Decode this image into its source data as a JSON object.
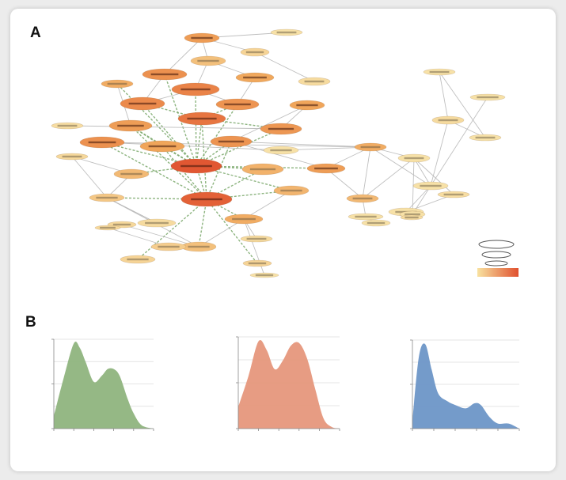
{
  "figure": {
    "panel_a_label": "A",
    "panel_b_label": "B"
  },
  "colors": {
    "node_low": "#f8e8b0",
    "node_mid": "#f0a55a",
    "node_high": "#e0502e",
    "edge_gray": "#b9b9b9",
    "edge_green": "#7aa86a",
    "density_green": "#8fb47e",
    "density_salmon": "#e6977c",
    "density_blue": "#6d96c7"
  },
  "network": {
    "nodes": [
      {
        "id": "n1",
        "level": 0.55
      },
      {
        "id": "n2",
        "level": 0.05
      },
      {
        "id": "n3",
        "level": 0.15
      },
      {
        "id": "n4",
        "level": 0.3
      },
      {
        "id": "n5",
        "level": 0.62
      },
      {
        "id": "n6",
        "level": 0.48
      },
      {
        "id": "n7",
        "level": 0.1
      },
      {
        "id": "n8",
        "level": 0.7
      },
      {
        "id": "n9",
        "level": 0.66
      },
      {
        "id": "n10",
        "level": 0.6
      },
      {
        "id": "n11",
        "level": 0.45
      },
      {
        "id": "n12",
        "level": 0.5
      },
      {
        "id": "n13",
        "level": 0.08
      },
      {
        "id": "n14",
        "level": 0.55
      },
      {
        "id": "n15",
        "level": 0.78
      },
      {
        "id": "n16",
        "level": 0.58
      },
      {
        "id": "n17",
        "level": 0.62
      },
      {
        "id": "n18",
        "level": 0.5
      },
      {
        "id": "n19",
        "level": 0.12
      },
      {
        "id": "n20",
        "level": 0.6
      },
      {
        "id": "n21",
        "level": 0.35
      },
      {
        "id": "n22",
        "level": 0.05
      },
      {
        "id": "n23",
        "level": 0.4
      },
      {
        "id": "n24",
        "level": 0.96
      },
      {
        "id": "n25",
        "level": 0.55
      },
      {
        "id": "n26",
        "level": 0.45
      },
      {
        "id": "n27",
        "level": 0.35
      },
      {
        "id": "n28",
        "level": 0.25
      },
      {
        "id": "n29",
        "level": 0.9
      },
      {
        "id": "n30",
        "level": 0.38
      },
      {
        "id": "n31",
        "level": 0.45
      },
      {
        "id": "n32",
        "level": 0.1
      },
      {
        "id": "n33",
        "level": 0.3
      },
      {
        "id": "n34",
        "level": 0.15
      },
      {
        "id": "n35",
        "level": 0.15
      },
      {
        "id": "n36",
        "level": 0.05
      },
      {
        "id": "n37",
        "level": 0.05
      },
      {
        "id": "n38",
        "level": 0.05
      },
      {
        "id": "n39",
        "level": 0.1
      },
      {
        "id": "n40",
        "level": 0.05
      },
      {
        "id": "n41",
        "level": 0.08
      },
      {
        "id": "n42",
        "level": 0.05
      },
      {
        "id": "n43",
        "level": 0.05
      },
      {
        "id": "n44",
        "level": 0.08
      },
      {
        "id": "n45",
        "level": 0.05
      },
      {
        "id": "n46",
        "level": 0.05
      },
      {
        "id": "n47",
        "level": 0.1
      },
      {
        "id": "n48",
        "level": 0.2
      },
      {
        "id": "n49",
        "level": 0.12
      },
      {
        "id": "n50",
        "level": 0.12
      },
      {
        "id": "n51",
        "level": 0.05
      },
      {
        "id": "n52",
        "level": 0.05
      }
    ],
    "edges": [
      [
        "n24",
        "n5",
        "green"
      ],
      [
        "n24",
        "n8",
        "green"
      ],
      [
        "n24",
        "n9",
        "green"
      ],
      [
        "n24",
        "n10",
        "green"
      ],
      [
        "n24",
        "n14",
        "green"
      ],
      [
        "n24",
        "n15",
        "green"
      ],
      [
        "n24",
        "n16",
        "green"
      ],
      [
        "n24",
        "n17",
        "green"
      ],
      [
        "n24",
        "n18",
        "green"
      ],
      [
        "n24",
        "n20",
        "green"
      ],
      [
        "n24",
        "n11",
        "green"
      ],
      [
        "n24",
        "n23",
        "green"
      ],
      [
        "n24",
        "n25",
        "green"
      ],
      [
        "n24",
        "n21",
        "green"
      ],
      [
        "n24",
        "n29",
        "green"
      ],
      [
        "n24",
        "n30",
        "green"
      ],
      [
        "n29",
        "n15",
        "green"
      ],
      [
        "n29",
        "n17",
        "green"
      ],
      [
        "n29",
        "n20",
        "green"
      ],
      [
        "n29",
        "n14",
        "green"
      ],
      [
        "n29",
        "n18",
        "green"
      ],
      [
        "n29",
        "n23",
        "green"
      ],
      [
        "n29",
        "n31",
        "green"
      ],
      [
        "n29",
        "n28",
        "green"
      ],
      [
        "n29",
        "n33",
        "green"
      ],
      [
        "n29",
        "n34",
        "green"
      ],
      [
        "n29",
        "n35",
        "green"
      ],
      [
        "n29",
        "n30",
        "green"
      ],
      [
        "n15",
        "n9",
        "green"
      ],
      [
        "n15",
        "n10",
        "green"
      ],
      [
        "n15",
        "n16",
        "green"
      ],
      [
        "n14",
        "n18",
        "green"
      ],
      [
        "n1",
        "n2",
        "gray"
      ],
      [
        "n1",
        "n3",
        "gray"
      ],
      [
        "n1",
        "n4",
        "gray"
      ],
      [
        "n1",
        "n5",
        "gray"
      ],
      [
        "n3",
        "n7",
        "gray"
      ],
      [
        "n4",
        "n8",
        "gray"
      ],
      [
        "n4",
        "n6",
        "gray"
      ],
      [
        "n6",
        "n10",
        "gray"
      ],
      [
        "n8",
        "n9",
        "gray"
      ],
      [
        "n8",
        "n10",
        "gray"
      ],
      [
        "n12",
        "n20",
        "gray"
      ],
      [
        "n11",
        "n14",
        "gray"
      ],
      [
        "n12",
        "n16",
        "gray"
      ],
      [
        "n13",
        "n16",
        "gray"
      ],
      [
        "n17",
        "n22",
        "gray"
      ],
      [
        "n17",
        "n26",
        "gray"
      ],
      [
        "n20",
        "n25",
        "gray"
      ],
      [
        "n20",
        "n26",
        "gray"
      ],
      [
        "n25",
        "n27",
        "gray"
      ],
      [
        "n25",
        "n26",
        "gray"
      ],
      [
        "n26",
        "n36",
        "gray"
      ],
      [
        "n26",
        "n27",
        "gray"
      ],
      [
        "n27",
        "n36",
        "gray"
      ],
      [
        "n27",
        "n37",
        "gray"
      ],
      [
        "n26",
        "n38",
        "gray"
      ],
      [
        "n36",
        "n38",
        "gray"
      ],
      [
        "n36",
        "n43",
        "gray"
      ],
      [
        "n38",
        "n42",
        "gray"
      ],
      [
        "n36",
        "n41",
        "gray"
      ],
      [
        "n41",
        "n42",
        "gray"
      ],
      [
        "n42",
        "n43",
        "gray"
      ],
      [
        "n43",
        "n44",
        "gray"
      ],
      [
        "n42",
        "n44",
        "gray"
      ],
      [
        "n43",
        "n45",
        "gray"
      ],
      [
        "n38",
        "n39",
        "gray"
      ],
      [
        "n40",
        "n39",
        "gray"
      ],
      [
        "n40",
        "n46",
        "gray"
      ],
      [
        "n39",
        "n46",
        "gray"
      ],
      [
        "n37",
        "n52",
        "gray"
      ],
      [
        "n21",
        "n19",
        "gray"
      ],
      [
        "n21",
        "n28",
        "gray"
      ],
      [
        "n28",
        "n32",
        "gray"
      ],
      [
        "n31",
        "n33",
        "gray"
      ],
      [
        "n31",
        "n47",
        "gray"
      ],
      [
        "n33",
        "n48",
        "gray"
      ],
      [
        "n33",
        "n49",
        "gray"
      ],
      [
        "n48",
        "n50",
        "gray"
      ],
      [
        "n31",
        "n51",
        "gray"
      ],
      [
        "n33",
        "n28",
        "gray"
      ],
      [
        "n30",
        "n31",
        "gray"
      ],
      [
        "n19",
        "n28",
        "gray"
      ],
      [
        "n32",
        "n28",
        "gray"
      ],
      [
        "n22",
        "n26",
        "gray"
      ],
      [
        "n5",
        "n9",
        "gray"
      ]
    ]
  },
  "legend": {
    "gradient_low": "#f8e2a0",
    "gradient_high": "#e0502e"
  },
  "chart_data": [
    {
      "type": "area",
      "title": "",
      "xlabel": "",
      "ylabel": "",
      "x": [
        0,
        0.5,
        1.0,
        1.3,
        1.6,
        2.0,
        2.4,
        2.7,
        3.0,
        3.3,
        3.7,
        4.0,
        4.4,
        5.0
      ],
      "y": [
        0.15,
        0.6,
        1.0,
        0.95,
        0.78,
        0.55,
        0.62,
        0.7,
        0.7,
        0.62,
        0.35,
        0.18,
        0.04,
        0.0
      ],
      "xlim": [
        0,
        5
      ],
      "ylim": [
        0,
        1.05
      ],
      "grid": "horizontal",
      "color": "#8fb47e"
    },
    {
      "type": "area",
      "title": "",
      "xlabel": "",
      "ylabel": "",
      "x": [
        0,
        0.5,
        1.0,
        1.4,
        1.8,
        2.2,
        2.6,
        3.0,
        3.4,
        3.8,
        4.2,
        4.6,
        5.0
      ],
      "y": [
        0.25,
        0.6,
        1.0,
        0.9,
        0.68,
        0.78,
        0.95,
        0.98,
        0.8,
        0.45,
        0.12,
        0.02,
        0.0
      ],
      "xlim": [
        0,
        5
      ],
      "ylim": [
        0,
        1.05
      ],
      "grid": "horizontal",
      "color": "#e6977c"
    },
    {
      "type": "area",
      "title": "",
      "xlabel": "",
      "ylabel": "",
      "x": [
        0,
        0.3,
        0.6,
        0.9,
        1.2,
        1.6,
        2.0,
        2.5,
        2.9,
        3.2,
        3.6,
        4.0,
        4.5,
        5.0
      ],
      "y": [
        0.1,
        0.85,
        1.0,
        0.7,
        0.42,
        0.33,
        0.28,
        0.24,
        0.3,
        0.28,
        0.14,
        0.06,
        0.06,
        0.0
      ],
      "xlim": [
        0,
        5
      ],
      "ylim": [
        0,
        1.05
      ],
      "grid": "horizontal",
      "color": "#6d96c7"
    }
  ]
}
